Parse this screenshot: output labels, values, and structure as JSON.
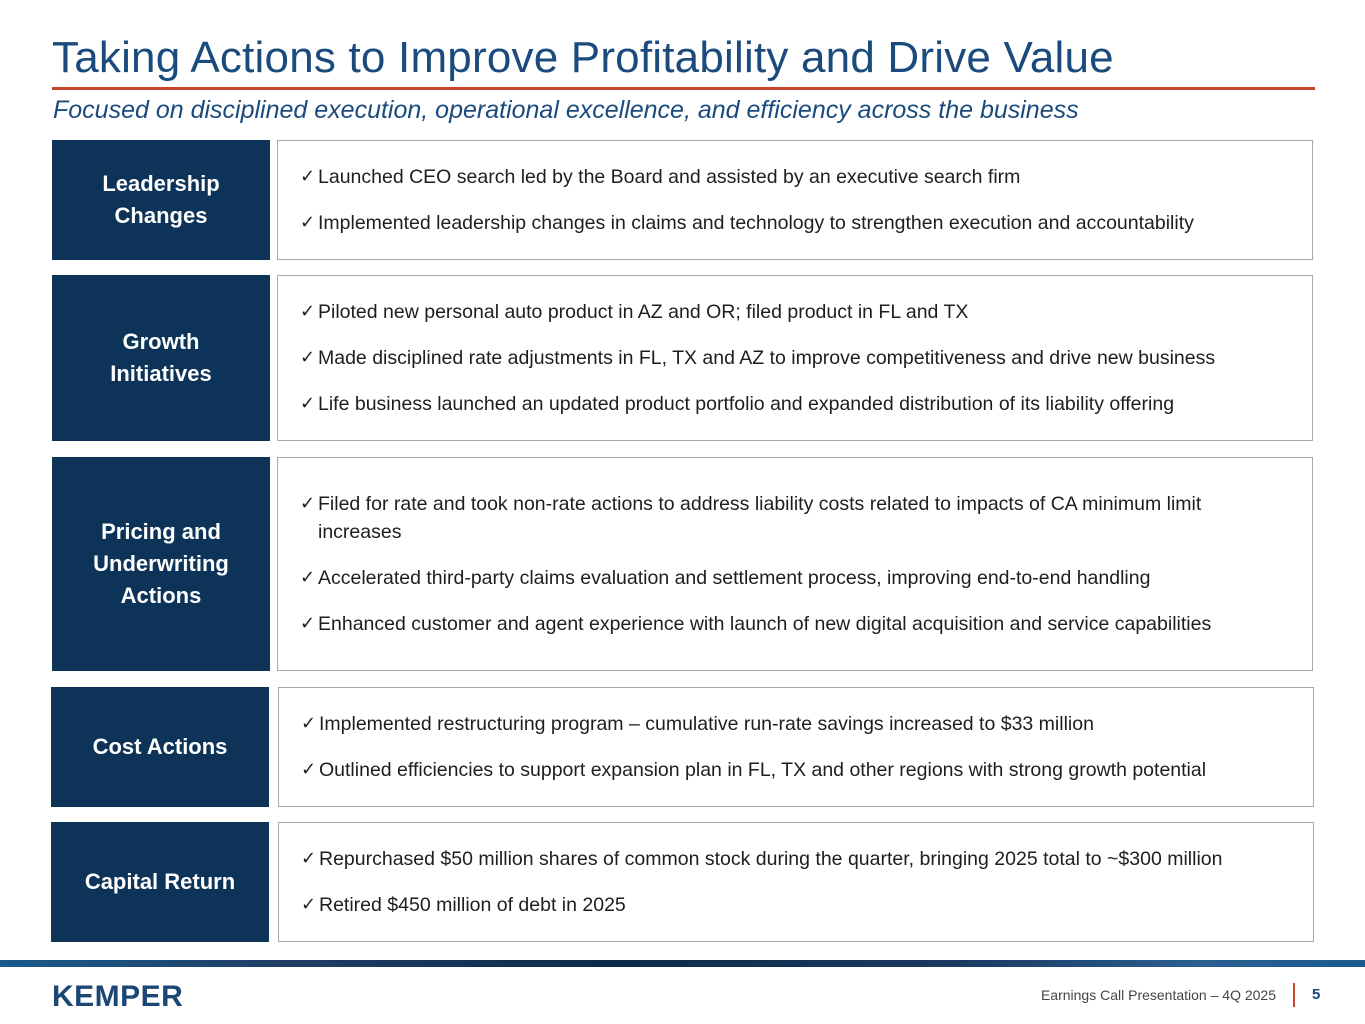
{
  "title": "Taking Actions to Improve Profitability and Drive Value",
  "subtitle": "Focused on disciplined execution, operational excellence, and efficiency across the business",
  "sections": [
    {
      "label": "Leadership\nChanges",
      "items": [
        "Launched CEO search led by the Board and assisted by an executive search firm",
        "Implemented leadership changes in claims and technology to strengthen execution and accountability"
      ]
    },
    {
      "label": "Growth\nInitiatives",
      "items": [
        "Piloted new personal auto product in AZ and OR; filed product in FL and TX",
        "Made disciplined rate adjustments in FL, TX and AZ to improve competitiveness and drive new business",
        "Life business launched an updated product portfolio and expanded distribution of its liability offering"
      ]
    },
    {
      "label": "Pricing and\nUnderwriting\nActions",
      "items": [
        "Filed for rate and took non-rate actions to address liability costs related to impacts of CA minimum limit increases",
        "Accelerated third-party claims evaluation and settlement process, improving end-to-end handling",
        "Enhanced customer and agent experience with launch of new digital acquisition and service capabilities"
      ]
    },
    {
      "label": "Cost Actions",
      "items": [
        "Implemented restructuring program – cumulative run-rate savings increased to $33 million",
        "Outlined efficiencies to support expansion plan in FL, TX and other regions with strong growth potential"
      ]
    },
    {
      "label": "Capital Return",
      "items": [
        "Repurchased $50 million shares of common stock during the quarter, bringing 2025 total to ~$300 million",
        "Retired $450 million of debt in 2025"
      ]
    }
  ],
  "check_glyph": "✓",
  "footer": {
    "logo": "KEMPER",
    "presentation": "Earnings Call Presentation – 4Q 2025",
    "page": "5"
  }
}
